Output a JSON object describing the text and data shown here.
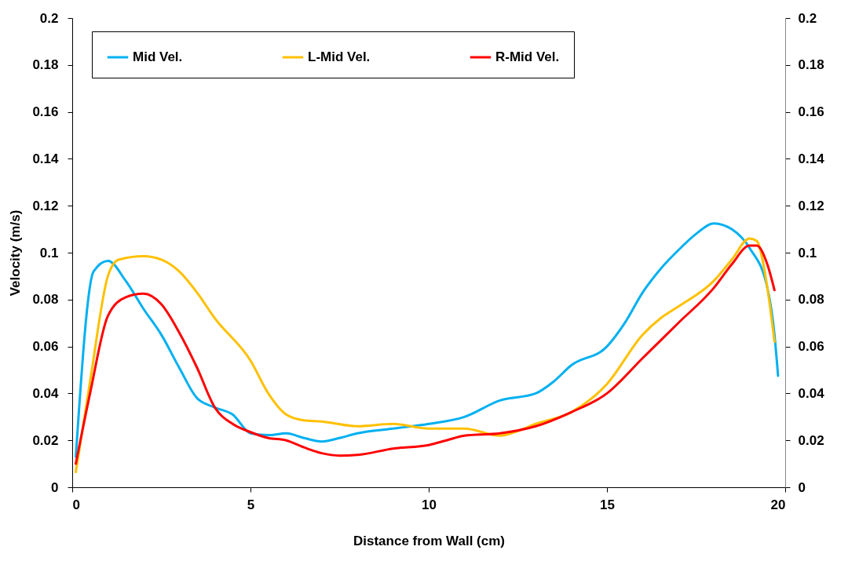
{
  "chart_data": {
    "type": "line",
    "xlabel": "Distance from Wall (cm)",
    "ylabel": "Velocity (m/s)",
    "xlim": [
      0,
      20
    ],
    "xticks": [
      0,
      5,
      10,
      15,
      20
    ],
    "ylim": [
      0,
      0.2
    ],
    "yticks": [
      0,
      0.02,
      0.04,
      0.06,
      0.08,
      0.1,
      0.12,
      0.14,
      0.16,
      0.18,
      0.2
    ],
    "y2lim": [
      0,
      0.2
    ],
    "y2ticks": [
      0,
      0.02,
      0.04,
      0.06,
      0.08,
      0.1,
      0.12,
      0.14,
      0.16,
      0.18,
      0.2
    ],
    "grid": false,
    "legend": "top",
    "marker": "none",
    "line_style": "solid",
    "series": [
      {
        "name": "Mid Vel.",
        "color": "#00b0f0",
        "x": [
          0.1,
          0.6,
          1,
          1.5,
          2,
          2.5,
          3,
          3.5,
          4,
          4.5,
          5,
          5.5,
          6,
          6.5,
          7,
          7.5,
          8,
          9,
          10,
          11,
          12,
          13,
          13.5,
          14,
          15,
          15.5,
          16,
          16.5,
          17,
          17.5,
          18,
          18.5,
          19,
          19.5,
          19.7,
          19.8
        ],
        "values": [
          0.013,
          0.092,
          0.0965,
          0.088,
          0.076,
          0.065,
          0.051,
          0.038,
          0.034,
          0.031,
          0.023,
          0.0222,
          0.023,
          0.021,
          0.0195,
          0.021,
          0.023,
          0.025,
          0.027,
          0.03,
          0.037,
          0.04,
          0.045,
          0.052,
          0.06,
          0.07,
          0.083,
          0.093,
          0.101,
          0.108,
          0.1125,
          0.11,
          0.102,
          0.085,
          0.065,
          0.0475
        ]
      },
      {
        "name": "L-Mid Vel.",
        "color": "#ffc000",
        "x": [
          0.1,
          0.5,
          1,
          1.3,
          2,
          2.5,
          3,
          3.5,
          4,
          5,
          5.5,
          6,
          6.5,
          7,
          8,
          9,
          10,
          11,
          12,
          12.5,
          13,
          14,
          15,
          16,
          16.5,
          17,
          18,
          18.5,
          19,
          19.2,
          19.5,
          19.7
        ],
        "values": [
          0.0065,
          0.045,
          0.09,
          0.097,
          0.0985,
          0.097,
          0.092,
          0.083,
          0.072,
          0.054,
          0.04,
          0.031,
          0.0285,
          0.028,
          0.026,
          0.027,
          0.025,
          0.025,
          0.022,
          0.024,
          0.027,
          0.032,
          0.044,
          0.065,
          0.072,
          0.077,
          0.088,
          0.097,
          0.106,
          0.105,
          0.085,
          0.062
        ]
      },
      {
        "name": "R-Mid Vel.",
        "color": "#ff0000",
        "x": [
          0.1,
          0.5,
          1,
          1.5,
          2,
          2.5,
          3,
          3.5,
          4,
          4.5,
          5,
          5.5,
          6,
          6.5,
          7,
          7.5,
          8,
          9,
          10,
          10.5,
          11,
          12,
          13,
          14,
          15,
          16,
          17,
          18,
          18.5,
          19,
          19.2,
          19.5,
          19.7
        ],
        "values": [
          0.01,
          0.04,
          0.073,
          0.081,
          0.0825,
          0.078,
          0.066,
          0.051,
          0.034,
          0.027,
          0.0235,
          0.021,
          0.02,
          0.017,
          0.0145,
          0.0135,
          0.0138,
          0.0165,
          0.018,
          0.02,
          0.022,
          0.023,
          0.026,
          0.032,
          0.04,
          0.055,
          0.07,
          0.085,
          0.095,
          0.103,
          0.103,
          0.095,
          0.084
        ]
      }
    ]
  }
}
